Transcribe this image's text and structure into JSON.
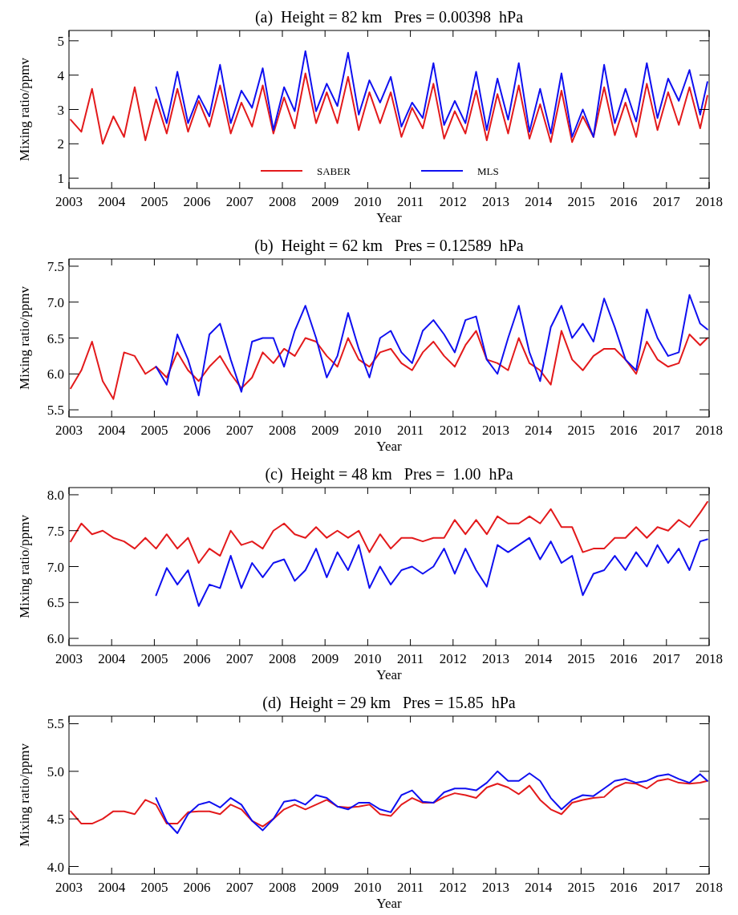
{
  "chart_data": [
    {
      "type": "line",
      "title": "(a)  Height = 82 km   Pres = 0.00398  hPa",
      "xlabel": "Year",
      "ylabel": "Mixing ratio/ppmv",
      "xlim": [
        2003,
        2018
      ],
      "xticks": [
        2003,
        2004,
        2005,
        2006,
        2007,
        2008,
        2009,
        2010,
        2011,
        2012,
        2013,
        2014,
        2015,
        2016,
        2017,
        2018
      ],
      "ylim": [
        0.7,
        5.3
      ],
      "yticks": [
        1,
        2,
        3,
        4,
        5
      ],
      "legend": "bottom",
      "x": [
        2003.04,
        2003.29,
        2003.54,
        2003.79,
        2004.04,
        2004.29,
        2004.54,
        2004.79,
        2005.04,
        2005.29,
        2005.54,
        2005.79,
        2006.04,
        2006.29,
        2006.54,
        2006.79,
        2007.04,
        2007.29,
        2007.54,
        2007.79,
        2008.04,
        2008.29,
        2008.54,
        2008.79,
        2009.04,
        2009.29,
        2009.54,
        2009.79,
        2010.04,
        2010.29,
        2010.54,
        2010.79,
        2011.04,
        2011.29,
        2011.54,
        2011.79,
        2012.04,
        2012.29,
        2012.54,
        2012.79,
        2013.04,
        2013.29,
        2013.54,
        2013.79,
        2014.04,
        2014.29,
        2014.54,
        2014.79,
        2015.04,
        2015.29,
        2015.54,
        2015.79,
        2016.04,
        2016.29,
        2016.54,
        2016.79,
        2017.04,
        2017.29,
        2017.54,
        2017.79,
        2017.96
      ],
      "series": [
        {
          "name": "SABER",
          "color": "#e31a1c",
          "values": [
            2.7,
            2.35,
            3.6,
            2.0,
            2.8,
            2.2,
            3.65,
            2.1,
            3.3,
            2.3,
            3.6,
            2.35,
            3.25,
            2.5,
            3.7,
            2.3,
            3.2,
            2.5,
            3.7,
            2.3,
            3.35,
            2.45,
            4.05,
            2.6,
            3.5,
            2.6,
            3.95,
            2.4,
            3.5,
            2.6,
            3.5,
            2.2,
            3.05,
            2.45,
            3.75,
            2.15,
            2.95,
            2.3,
            3.55,
            2.1,
            3.45,
            2.3,
            3.7,
            2.15,
            3.15,
            2.05,
            3.55,
            2.05,
            2.8,
            2.2,
            3.65,
            2.25,
            3.2,
            2.2,
            3.75,
            2.4,
            3.5,
            2.55,
            3.65,
            2.45,
            3.4
          ]
        },
        {
          "name": "MLS",
          "color": "#1010f0",
          "x": [
            2005.04,
            2005.29,
            2005.54,
            2005.79,
            2006.04,
            2006.29,
            2006.54,
            2006.79,
            2007.04,
            2007.29,
            2007.54,
            2007.79,
            2008.04,
            2008.29,
            2008.54,
            2008.79,
            2009.04,
            2009.29,
            2009.54,
            2009.79,
            2010.04,
            2010.29,
            2010.54,
            2010.79,
            2011.04,
            2011.29,
            2011.54,
            2011.79,
            2012.04,
            2012.29,
            2012.54,
            2012.79,
            2013.04,
            2013.29,
            2013.54,
            2013.79,
            2014.04,
            2014.29,
            2014.54,
            2014.79,
            2015.04,
            2015.29,
            2015.54,
            2015.79,
            2016.04,
            2016.29,
            2016.54,
            2016.79,
            2017.04,
            2017.29,
            2017.54,
            2017.79,
            2017.96
          ],
          "values": [
            3.65,
            2.6,
            4.1,
            2.6,
            3.4,
            2.8,
            4.3,
            2.6,
            3.55,
            3.05,
            4.2,
            2.4,
            3.65,
            2.95,
            4.7,
            2.95,
            3.75,
            3.1,
            4.65,
            2.85,
            3.85,
            3.2,
            3.95,
            2.5,
            3.2,
            2.75,
            4.35,
            2.55,
            3.25,
            2.6,
            4.1,
            2.4,
            3.9,
            2.7,
            4.35,
            2.35,
            3.6,
            2.3,
            4.05,
            2.2,
            3.0,
            2.2,
            4.3,
            2.6,
            3.6,
            2.65,
            4.35,
            2.75,
            3.9,
            3.25,
            4.15,
            2.85,
            3.8
          ]
        }
      ]
    },
    {
      "type": "line",
      "title": "(b)  Height = 62 km   Pres = 0.12589  hPa",
      "xlabel": "Year",
      "ylabel": "Mixing ratio/ppmv",
      "xlim": [
        2003,
        2018
      ],
      "xticks": [
        2003,
        2004,
        2005,
        2006,
        2007,
        2008,
        2009,
        2010,
        2011,
        2012,
        2013,
        2014,
        2015,
        2016,
        2017,
        2018
      ],
      "ylim": [
        5.4,
        7.6
      ],
      "yticks": [
        5.5,
        {
          "value": 6,
          "label": "6.0"
        },
        6.5,
        {
          "value": 7,
          "label": "7.0"
        },
        7.5
      ],
      "x": [
        2003.04,
        2003.29,
        2003.54,
        2003.79,
        2004.04,
        2004.29,
        2004.54,
        2004.79,
        2005.04,
        2005.29,
        2005.54,
        2005.79,
        2006.04,
        2006.29,
        2006.54,
        2006.79,
        2007.04,
        2007.29,
        2007.54,
        2007.79,
        2008.04,
        2008.29,
        2008.54,
        2008.79,
        2009.04,
        2009.29,
        2009.54,
        2009.79,
        2010.04,
        2010.29,
        2010.54,
        2010.79,
        2011.04,
        2011.29,
        2011.54,
        2011.79,
        2012.04,
        2012.29,
        2012.54,
        2012.79,
        2013.04,
        2013.29,
        2013.54,
        2013.79,
        2014.04,
        2014.29,
        2014.54,
        2014.79,
        2015.04,
        2015.29,
        2015.54,
        2015.79,
        2016.04,
        2016.29,
        2016.54,
        2016.79,
        2017.04,
        2017.29,
        2017.54,
        2017.79,
        2017.96
      ],
      "series": [
        {
          "color": "#e31a1c",
          "values": [
            5.8,
            6.05,
            6.45,
            5.9,
            5.65,
            6.3,
            6.25,
            6.0,
            6.1,
            5.95,
            6.3,
            6.05,
            5.9,
            6.1,
            6.25,
            6.0,
            5.8,
            5.95,
            6.3,
            6.15,
            6.35,
            6.25,
            6.5,
            6.45,
            6.25,
            6.1,
            6.5,
            6.2,
            6.1,
            6.3,
            6.35,
            6.15,
            6.05,
            6.3,
            6.45,
            6.25,
            6.1,
            6.4,
            6.6,
            6.2,
            6.15,
            6.05,
            6.5,
            6.15,
            6.05,
            5.85,
            6.6,
            6.2,
            6.05,
            6.25,
            6.35,
            6.35,
            6.2,
            6.0,
            6.45,
            6.2,
            6.1,
            6.15,
            6.55,
            6.4,
            6.5
          ]
        },
        {
          "color": "#1010f0",
          "x": [
            2005.04,
            2005.29,
            2005.54,
            2005.79,
            2006.04,
            2006.29,
            2006.54,
            2006.79,
            2007.04,
            2007.29,
            2007.54,
            2007.79,
            2008.04,
            2008.29,
            2008.54,
            2008.79,
            2009.04,
            2009.29,
            2009.54,
            2009.79,
            2010.04,
            2010.29,
            2010.54,
            2010.79,
            2011.04,
            2011.29,
            2011.54,
            2011.79,
            2012.04,
            2012.29,
            2012.54,
            2012.79,
            2013.04,
            2013.29,
            2013.54,
            2013.79,
            2014.04,
            2014.29,
            2014.54,
            2014.79,
            2015.04,
            2015.29,
            2015.54,
            2015.79,
            2016.04,
            2016.29,
            2016.54,
            2016.79,
            2017.04,
            2017.29,
            2017.54,
            2017.79,
            2017.96
          ],
          "values": [
            6.1,
            5.85,
            6.55,
            6.2,
            5.7,
            6.55,
            6.7,
            6.2,
            5.75,
            6.45,
            6.5,
            6.5,
            6.1,
            6.6,
            6.95,
            6.5,
            5.95,
            6.25,
            6.85,
            6.35,
            5.95,
            6.5,
            6.6,
            6.3,
            6.15,
            6.6,
            6.75,
            6.55,
            6.3,
            6.75,
            6.8,
            6.2,
            6.0,
            6.5,
            6.95,
            6.3,
            5.9,
            6.65,
            6.95,
            6.5,
            6.7,
            6.45,
            7.05,
            6.65,
            6.2,
            6.05,
            6.9,
            6.5,
            6.25,
            6.3,
            7.1,
            6.7,
            6.62
          ]
        }
      ]
    },
    {
      "type": "line",
      "title": "(c)  Height = 48 km   Pres =  1.00  hPa",
      "xlabel": "Year",
      "ylabel": "Mixing ratio/ppmv",
      "xlim": [
        2003,
        2018
      ],
      "xticks": [
        2003,
        2004,
        2005,
        2006,
        2007,
        2008,
        2009,
        2010,
        2011,
        2012,
        2013,
        2014,
        2015,
        2016,
        2017,
        2018
      ],
      "ylim": [
        5.9,
        8.1
      ],
      "yticks": [
        {
          "value": 6,
          "label": "6.0"
        },
        6.5,
        {
          "value": 7,
          "label": "7.0"
        },
        7.5,
        {
          "value": 8,
          "label": "8.0"
        }
      ],
      "x": [
        2003.04,
        2003.29,
        2003.54,
        2003.79,
        2004.04,
        2004.29,
        2004.54,
        2004.79,
        2005.04,
        2005.29,
        2005.54,
        2005.79,
        2006.04,
        2006.29,
        2006.54,
        2006.79,
        2007.04,
        2007.29,
        2007.54,
        2007.79,
        2008.04,
        2008.29,
        2008.54,
        2008.79,
        2009.04,
        2009.29,
        2009.54,
        2009.79,
        2010.04,
        2010.29,
        2010.54,
        2010.79,
        2011.04,
        2011.29,
        2011.54,
        2011.79,
        2012.04,
        2012.29,
        2012.54,
        2012.79,
        2013.04,
        2013.29,
        2013.54,
        2013.79,
        2014.04,
        2014.29,
        2014.54,
        2014.79,
        2015.04,
        2015.29,
        2015.54,
        2015.79,
        2016.04,
        2016.29,
        2016.54,
        2016.79,
        2017.04,
        2017.29,
        2017.54,
        2017.79,
        2017.96
      ],
      "series": [
        {
          "color": "#e31a1c",
          "values": [
            7.35,
            7.6,
            7.45,
            7.5,
            7.4,
            7.35,
            7.25,
            7.4,
            7.25,
            7.45,
            7.25,
            7.4,
            7.05,
            7.25,
            7.15,
            7.5,
            7.3,
            7.35,
            7.25,
            7.5,
            7.6,
            7.45,
            7.4,
            7.55,
            7.4,
            7.5,
            7.4,
            7.5,
            7.2,
            7.45,
            7.25,
            7.4,
            7.4,
            7.35,
            7.4,
            7.4,
            7.65,
            7.45,
            7.65,
            7.45,
            7.7,
            7.6,
            7.6,
            7.7,
            7.6,
            7.8,
            7.55,
            7.55,
            7.2,
            7.25,
            7.25,
            7.4,
            7.4,
            7.55,
            7.4,
            7.55,
            7.5,
            7.65,
            7.55,
            7.75,
            7.9
          ]
        },
        {
          "color": "#1010f0",
          "x": [
            2005.04,
            2005.29,
            2005.54,
            2005.79,
            2006.04,
            2006.29,
            2006.54,
            2006.79,
            2007.04,
            2007.29,
            2007.54,
            2007.79,
            2008.04,
            2008.29,
            2008.54,
            2008.79,
            2009.04,
            2009.29,
            2009.54,
            2009.79,
            2010.04,
            2010.29,
            2010.54,
            2010.79,
            2011.04,
            2011.29,
            2011.54,
            2011.79,
            2012.04,
            2012.29,
            2012.54,
            2012.79,
            2013.04,
            2013.29,
            2013.54,
            2013.79,
            2014.04,
            2014.29,
            2014.54,
            2014.79,
            2015.04,
            2015.29,
            2015.54,
            2015.79,
            2016.04,
            2016.29,
            2016.54,
            2016.79,
            2017.04,
            2017.29,
            2017.54,
            2017.79,
            2017.96
          ],
          "values": [
            6.6,
            6.98,
            6.75,
            6.95,
            6.45,
            6.75,
            6.7,
            7.15,
            6.7,
            7.05,
            6.85,
            7.05,
            7.1,
            6.8,
            6.95,
            7.25,
            6.85,
            7.2,
            6.95,
            7.3,
            6.7,
            7.0,
            6.75,
            6.95,
            7.0,
            6.9,
            7.0,
            7.25,
            6.9,
            7.25,
            6.95,
            6.72,
            7.3,
            7.2,
            7.3,
            7.4,
            7.1,
            7.35,
            7.05,
            7.15,
            6.6,
            6.9,
            6.95,
            7.15,
            6.95,
            7.2,
            7.0,
            7.3,
            7.05,
            7.25,
            6.95,
            7.35,
            7.38
          ]
        }
      ]
    },
    {
      "type": "line",
      "title": "(d)  Height = 29 km   Pres = 15.85  hPa",
      "xlabel": "Year",
      "ylabel": "Mixing ratio/ppmv",
      "xlim": [
        2003,
        2018
      ],
      "xticks": [
        2003,
        2004,
        2005,
        2006,
        2007,
        2008,
        2009,
        2010,
        2011,
        2012,
        2013,
        2014,
        2015,
        2016,
        2017,
        2018
      ],
      "ylim": [
        3.92,
        5.58
      ],
      "yticks": [
        {
          "value": 4,
          "label": "4.0"
        },
        4.5,
        {
          "value": 5,
          "label": "5.0"
        },
        5.5
      ],
      "x": [
        2003.04,
        2003.29,
        2003.54,
        2003.79,
        2004.04,
        2004.29,
        2004.54,
        2004.79,
        2005.04,
        2005.29,
        2005.54,
        2005.79,
        2006.04,
        2006.29,
        2006.54,
        2006.79,
        2007.04,
        2007.29,
        2007.54,
        2007.79,
        2008.04,
        2008.29,
        2008.54,
        2008.79,
        2009.04,
        2009.29,
        2009.54,
        2009.79,
        2010.04,
        2010.29,
        2010.54,
        2010.79,
        2011.04,
        2011.29,
        2011.54,
        2011.79,
        2012.04,
        2012.29,
        2012.54,
        2012.79,
        2013.04,
        2013.29,
        2013.54,
        2013.79,
        2014.04,
        2014.29,
        2014.54,
        2014.79,
        2015.04,
        2015.29,
        2015.54,
        2015.79,
        2016.04,
        2016.29,
        2016.54,
        2016.79,
        2017.04,
        2017.29,
        2017.54,
        2017.79,
        2017.96
      ],
      "series": [
        {
          "color": "#e31a1c",
          "values": [
            4.58,
            4.45,
            4.45,
            4.5,
            4.58,
            4.58,
            4.55,
            4.7,
            4.65,
            4.45,
            4.45,
            4.57,
            4.58,
            4.58,
            4.55,
            4.65,
            4.6,
            4.48,
            4.42,
            4.5,
            4.6,
            4.65,
            4.6,
            4.65,
            4.7,
            4.63,
            4.62,
            4.63,
            4.65,
            4.55,
            4.53,
            4.65,
            4.72,
            4.67,
            4.67,
            4.73,
            4.77,
            4.75,
            4.72,
            4.83,
            4.87,
            4.83,
            4.76,
            4.85,
            4.7,
            4.6,
            4.55,
            4.67,
            4.7,
            4.72,
            4.73,
            4.83,
            4.88,
            4.87,
            4.82,
            4.9,
            4.92,
            4.88,
            4.87,
            4.88,
            4.9
          ]
        },
        {
          "color": "#1010f0",
          "x": [
            2005.04,
            2005.29,
            2005.54,
            2005.79,
            2006.04,
            2006.29,
            2006.54,
            2006.79,
            2007.04,
            2007.29,
            2007.54,
            2007.79,
            2008.04,
            2008.29,
            2008.54,
            2008.79,
            2009.04,
            2009.29,
            2009.54,
            2009.79,
            2010.04,
            2010.29,
            2010.54,
            2010.79,
            2011.04,
            2011.29,
            2011.54,
            2011.79,
            2012.04,
            2012.29,
            2012.54,
            2012.79,
            2013.04,
            2013.29,
            2013.54,
            2013.79,
            2014.04,
            2014.29,
            2014.54,
            2014.79,
            2015.04,
            2015.29,
            2015.54,
            2015.79,
            2016.04,
            2016.29,
            2016.54,
            2016.79,
            2017.04,
            2017.29,
            2017.54,
            2017.79,
            2017.96
          ],
          "values": [
            4.72,
            4.47,
            4.35,
            4.55,
            4.65,
            4.68,
            4.62,
            4.72,
            4.65,
            4.48,
            4.38,
            4.5,
            4.68,
            4.7,
            4.65,
            4.75,
            4.72,
            4.63,
            4.6,
            4.67,
            4.67,
            4.6,
            4.57,
            4.75,
            4.8,
            4.68,
            4.67,
            4.78,
            4.82,
            4.82,
            4.8,
            4.88,
            5.0,
            4.9,
            4.9,
            4.98,
            4.9,
            4.72,
            4.6,
            4.7,
            4.75,
            4.74,
            4.82,
            4.9,
            4.92,
            4.88,
            4.9,
            4.95,
            4.97,
            4.92,
            4.88,
            4.97,
            4.9
          ]
        }
      ]
    }
  ]
}
